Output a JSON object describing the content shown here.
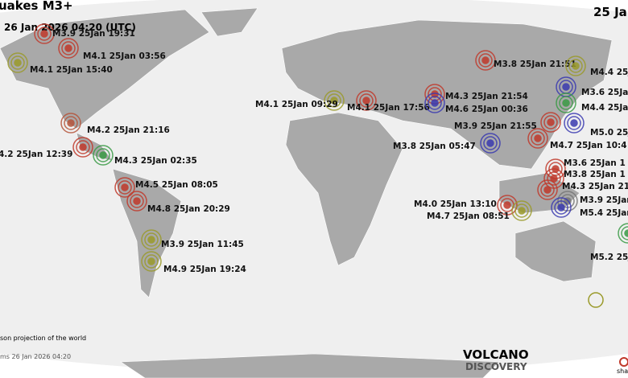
{
  "header": {
    "title": "uakes M3+",
    "time": "26 Jan 2026 04:20 (UTC)",
    "date_right": "25 Ja"
  },
  "quakes": [
    {
      "label": "M3.9 25Jan 19:31",
      "color": "#c0392b"
    },
    {
      "label": "M4.1 25Jan 03:56",
      "color": "#c0392b"
    },
    {
      "label": "M4.1 25Jan 15:40",
      "color": "#9a9a2a"
    },
    {
      "label": "M4.2 25Jan 21:16",
      "color": "#b5533a"
    },
    {
      "label": "4.2 25Jan 12:39",
      "color": "#c0392b"
    },
    {
      "label": "M4.3 25Jan 02:35",
      "color": "#3a9a45"
    },
    {
      "label": "M4.5 25Jan 08:05",
      "color": "#c0392b"
    },
    {
      "label": "M4.8 25Jan 20:29",
      "color": "#c0392b"
    },
    {
      "label": "M3.9 25Jan 11:45",
      "color": "#9a9a2a"
    },
    {
      "label": "M4.9 25Jan 19:24",
      "color": "#9a9a2a"
    },
    {
      "label": "M3.8 25Jan 21:51",
      "color": "#c0392b"
    },
    {
      "label": "M4.4 25Ja",
      "color": "#9a9a2a"
    },
    {
      "label": "M4.1 25Jan 09:29",
      "color": "#9a9a2a"
    },
    {
      "label": "M4.1 25Jan 17:56",
      "color": "#c0392b"
    },
    {
      "label": "M4.3 25Jan 21:54",
      "color": "#c0392b"
    },
    {
      "label": "M4.6 25Jan 00:36",
      "color": "#3a3ab0"
    },
    {
      "label": "M3.6 25Jan",
      "color": "#3a3ab0"
    },
    {
      "label": "M4.4 25Jan",
      "color": "#3a9a45"
    },
    {
      "label": "M3.9 25Jan 21:55",
      "color": "#3a3ab0"
    },
    {
      "label": "M5.0 25Jan",
      "color": "#3a3ab0"
    },
    {
      "label": "M4.7 25Jan 10:4",
      "color": "#c0392b"
    },
    {
      "label": "M3.8 25Jan 05:47",
      "color": "#c0392b"
    },
    {
      "label": "M3.6 25Jan 1",
      "color": "#c0392b"
    },
    {
      "label": "M3.8 25Jan 1",
      "color": "#c0392b"
    },
    {
      "label": "M4.3 25Jan 21",
      "color": "#c0392b"
    },
    {
      "label": "M3.9 25Jan",
      "color": "#777777"
    },
    {
      "label": "M4.0 25Jan 13:10",
      "color": "#c0392b"
    },
    {
      "label": "M4.7 25Jan 08:51",
      "color": "#9a9a2a"
    },
    {
      "label": "M5.4 25Jan",
      "color": "#3a3ab0"
    },
    {
      "label": "M5.2 25J",
      "color": "#3a9a45"
    }
  ],
  "footer": {
    "projection": "son projection of the world",
    "stamp": "ms 26 Jan 2026 04:20",
    "logo_top": "VOLCANO",
    "logo_bottom": "DISCOVERY",
    "share": "sha"
  }
}
